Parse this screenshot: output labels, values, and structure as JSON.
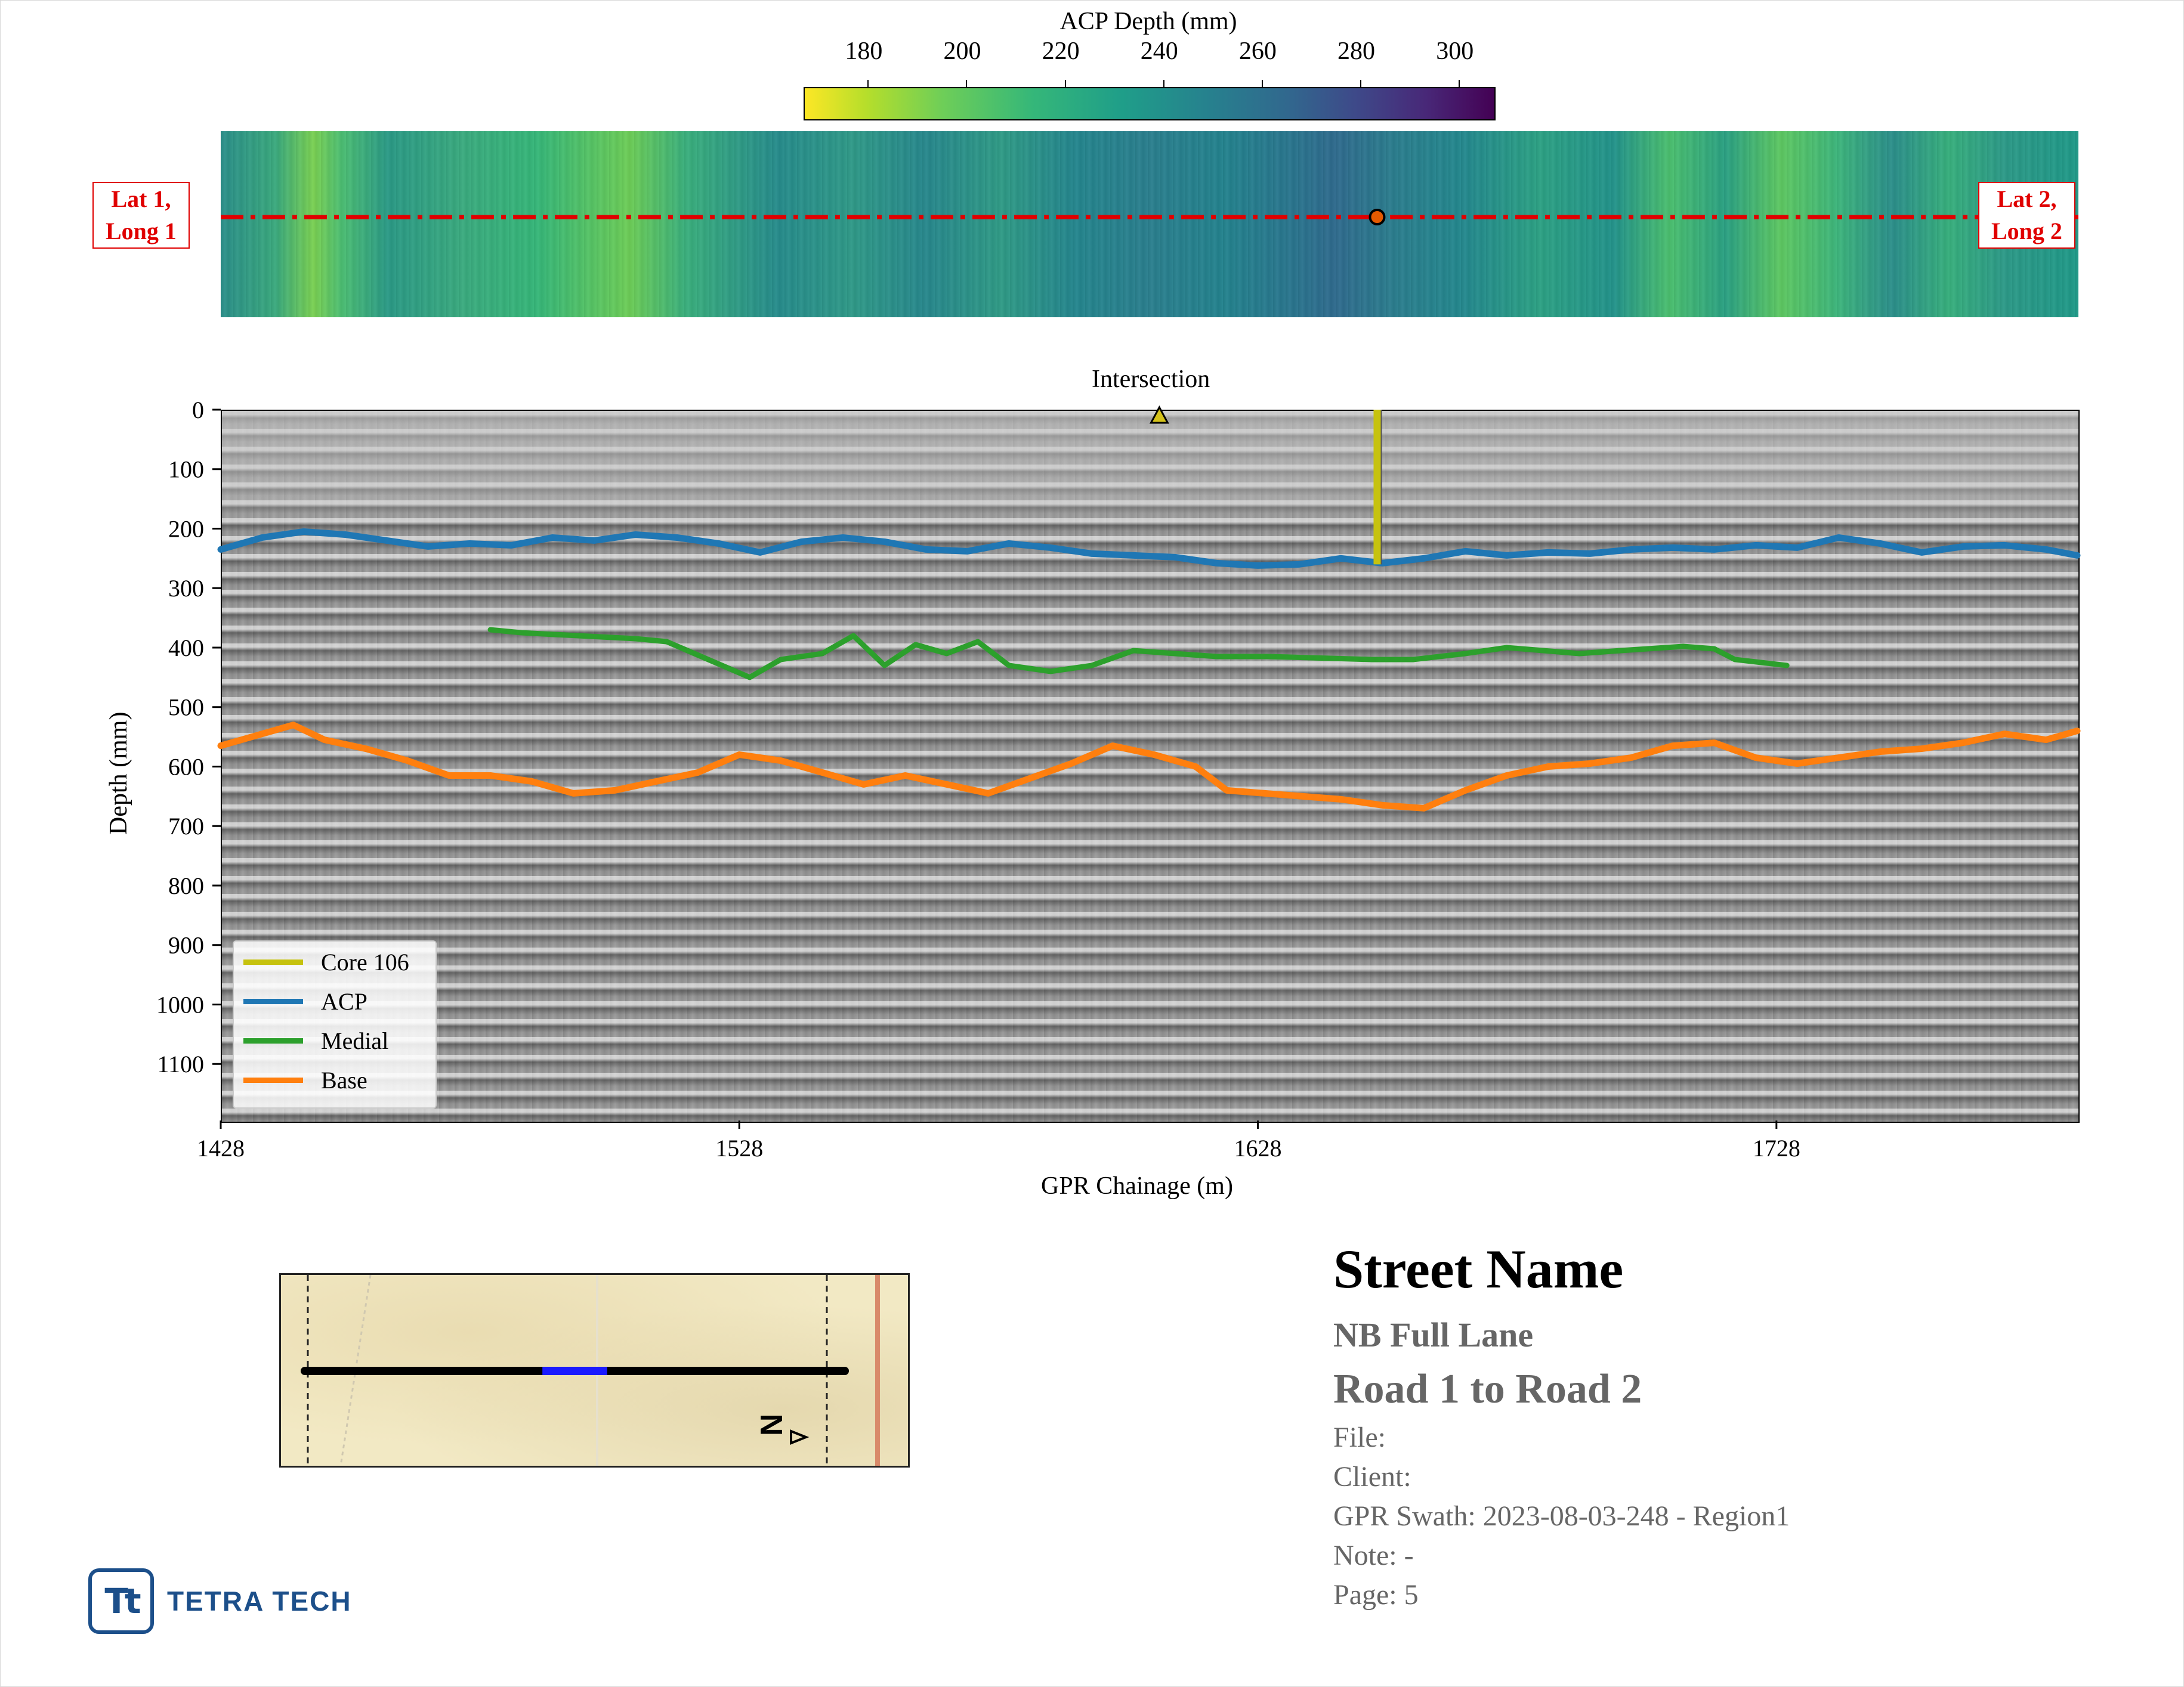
{
  "colorbar": {
    "title": "ACP Depth (mm)",
    "ticks": [
      180,
      200,
      220,
      240,
      260,
      280,
      300
    ],
    "range": [
      167,
      307
    ],
    "colormap": "viridis_r"
  },
  "depth_map": {
    "start_label_line1": "Lat 1,",
    "start_label_line2": "Long 1",
    "end_label_line1": "Lat 2,",
    "end_label_line2": "Long 2",
    "line_color": "#e00000",
    "marker_chainage": 1651
  },
  "chart_data": {
    "type": "line",
    "title": "Intersection",
    "xlabel": "GPR Chainage (m)",
    "ylabel": "Depth (mm)",
    "xlim": [
      1428,
      1786
    ],
    "ylim": [
      1195,
      0
    ],
    "xticks": [
      1428,
      1528,
      1628,
      1728
    ],
    "yticks": [
      0,
      100,
      200,
      300,
      400,
      500,
      600,
      700,
      800,
      900,
      1000,
      1100
    ],
    "intersection_marker_x": 1609,
    "core": {
      "name": "Core 106",
      "x": 1651,
      "depth_top": 0,
      "depth_bottom": 260,
      "color": "#c6c20f"
    },
    "series": [
      {
        "name": "ACP",
        "color": "#1f77b4",
        "x": [
          1428,
          1436,
          1444,
          1452,
          1460,
          1468,
          1476,
          1484,
          1492,
          1500,
          1508,
          1516,
          1524,
          1532,
          1540,
          1548,
          1556,
          1564,
          1572,
          1580,
          1588,
          1596,
          1604,
          1612,
          1620,
          1628,
          1636,
          1644,
          1652,
          1660,
          1668,
          1676,
          1684,
          1692,
          1700,
          1708,
          1716,
          1724,
          1732,
          1740,
          1748,
          1756,
          1764,
          1772,
          1780,
          1786
        ],
        "y": [
          235,
          215,
          205,
          210,
          220,
          230,
          225,
          228,
          215,
          220,
          210,
          215,
          225,
          240,
          222,
          215,
          222,
          235,
          238,
          225,
          232,
          242,
          245,
          248,
          258,
          262,
          260,
          250,
          258,
          250,
          238,
          245,
          240,
          242,
          235,
          232,
          235,
          228,
          232,
          215,
          225,
          240,
          230,
          228,
          235,
          245
        ]
      },
      {
        "name": "Medial",
        "color": "#2ca02c",
        "x": [
          1480,
          1486,
          1508,
          1514,
          1530,
          1536,
          1544,
          1550,
          1556,
          1562,
          1568,
          1574,
          1580,
          1588,
          1596,
          1604,
          1612,
          1620,
          1630,
          1650,
          1658,
          1668,
          1676,
          1690,
          1698,
          1710,
          1716,
          1720,
          1730
        ],
        "y": [
          370,
          375,
          385,
          390,
          450,
          420,
          410,
          380,
          430,
          395,
          410,
          390,
          430,
          440,
          430,
          405,
          410,
          415,
          415,
          420,
          420,
          410,
          400,
          410,
          405,
          398,
          402,
          420,
          430
        ]
      },
      {
        "name": "Base",
        "color": "#ff7f0e",
        "x": [
          1428,
          1436,
          1442,
          1448,
          1456,
          1464,
          1472,
          1480,
          1488,
          1496,
          1504,
          1512,
          1520,
          1528,
          1536,
          1544,
          1552,
          1560,
          1568,
          1576,
          1584,
          1592,
          1600,
          1608,
          1616,
          1622,
          1644,
          1652,
          1660,
          1668,
          1676,
          1684,
          1692,
          1700,
          1708,
          1716,
          1724,
          1732,
          1740,
          1748,
          1756,
          1764,
          1772,
          1780,
          1786
        ],
        "y": [
          565,
          545,
          530,
          555,
          570,
          590,
          615,
          615,
          625,
          645,
          640,
          625,
          610,
          580,
          590,
          610,
          630,
          615,
          630,
          645,
          620,
          595,
          565,
          580,
          600,
          640,
          655,
          665,
          670,
          640,
          615,
          600,
          595,
          585,
          565,
          560,
          585,
          595,
          585,
          575,
          570,
          560,
          545,
          555,
          540
        ]
      }
    ],
    "legend": [
      "Core 106",
      "ACP",
      "Medial",
      "Base"
    ],
    "legend_position": "lower-left"
  },
  "info": {
    "street": "Street Name",
    "lane": "NB Full Lane",
    "route": "Road 1 to Road 2",
    "file": "File:",
    "client": "Client:",
    "swath": "GPR Swath: 2023-08-03-248 - Region1",
    "note": "Note: -",
    "page": "Page: 5"
  },
  "logo": {
    "mark": "Tt",
    "text": "TETRA TECH"
  },
  "minimap": {
    "north_label": "N",
    "route_color": "#000000",
    "highlight_color": "#1a1aff",
    "highlight_fraction": [
      0.44,
      0.56
    ]
  }
}
